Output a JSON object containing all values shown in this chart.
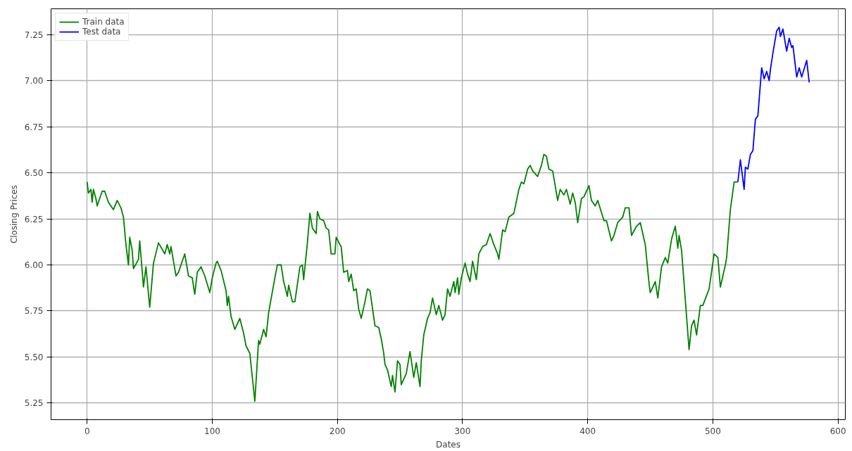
{
  "chart_data": {
    "type": "line",
    "xlabel": "Dates",
    "ylabel": "Closing Prices",
    "xlim": [
      -28.85,
      605.85
    ],
    "ylim": [
      5.16,
      7.39
    ],
    "xticks": [
      0,
      100,
      200,
      300,
      400,
      500,
      600
    ],
    "yticks": [
      5.25,
      {
        "value": 5.5,
        "label": "5.50"
      },
      5.75,
      {
        "value": 6.0,
        "label": "6.00"
      },
      6.25,
      {
        "value": 6.5,
        "label": "6.50"
      },
      6.75,
      {
        "value": 7.0,
        "label": "7.00"
      },
      7.25
    ],
    "grid": true,
    "legend": "top left",
    "marker": "none",
    "line_style": "solid",
    "series": [
      {
        "name": "Train data",
        "color": "#008000",
        "x": [
          0,
          1,
          3,
          4,
          5,
          7,
          8,
          12,
          14,
          17,
          21,
          24,
          27,
          29,
          31,
          33,
          34,
          36,
          37,
          41,
          42,
          43,
          45,
          47,
          50,
          53,
          57,
          62,
          64,
          66,
          67,
          71,
          73,
          78,
          81,
          84,
          86,
          88,
          91,
          94,
          98,
          100,
          103,
          104,
          107,
          111,
          112,
          113,
          115,
          118,
          122,
          125,
          127,
          130,
          134,
          137,
          138,
          141,
          143,
          145,
          150,
          152,
          155,
          157,
          160,
          161,
          164,
          166,
          170,
          172,
          173,
          176,
          178,
          180,
          183,
          184,
          186,
          189,
          191,
          193,
          195,
          198,
          199,
          202,
          203,
          205,
          208,
          209,
          211,
          213,
          215,
          217,
          219,
          222,
          224,
          226,
          230,
          233,
          235,
          237,
          238,
          240,
          243,
          244,
          246,
          248,
          250,
          251,
          255,
          258,
          261,
          263,
          266,
          267,
          269,
          272,
          274,
          276,
          279,
          281,
          284,
          286,
          288,
          290,
          293,
          294,
          296,
          297,
          299,
          302,
          304,
          306,
          308,
          311,
          313,
          316,
          319,
          321,
          322,
          325,
          328,
          329,
          332,
          334,
          337,
          341,
          345,
          347,
          349,
          352,
          354,
          356,
          360,
          363,
          365,
          367,
          369,
          372,
          376,
          378,
          381,
          383,
          386,
          388,
          390,
          392,
          395,
          397,
          401,
          403,
          406,
          408,
          413,
          415,
          419,
          421,
          424,
          428,
          430,
          433,
          435,
          439,
          442,
          446,
          449,
          450,
          454,
          456,
          459,
          462,
          464,
          467,
          470,
          472,
          473,
          475,
          481,
          483,
          485,
          487,
          490,
          492,
          497,
          501,
          504,
          506,
          510,
          511,
          514,
          517,
          520
        ],
        "values": [
          6.45,
          6.39,
          6.41,
          6.34,
          6.41,
          6.36,
          6.32,
          6.4,
          6.4,
          6.34,
          6.3,
          6.35,
          6.31,
          6.26,
          6.11,
          6.0,
          6.15,
          6.08,
          5.98,
          6.03,
          6.13,
          6.05,
          5.88,
          5.99,
          5.77,
          6.01,
          6.12,
          6.06,
          6.11,
          6.06,
          6.1,
          5.94,
          5.96,
          6.06,
          5.94,
          5.93,
          5.84,
          5.96,
          5.99,
          5.94,
          5.85,
          5.93,
          6.01,
          6.02,
          5.97,
          5.86,
          5.78,
          5.83,
          5.72,
          5.65,
          5.71,
          5.63,
          5.56,
          5.52,
          5.26,
          5.59,
          5.57,
          5.65,
          5.61,
          5.74,
          5.93,
          6.0,
          6.0,
          5.91,
          5.83,
          5.89,
          5.8,
          5.8,
          5.99,
          6.0,
          5.92,
          6.12,
          6.28,
          6.2,
          6.17,
          6.29,
          6.25,
          6.24,
          6.2,
          6.19,
          6.06,
          6.06,
          6.15,
          6.11,
          6.1,
          5.96,
          5.97,
          5.91,
          5.95,
          5.86,
          5.87,
          5.76,
          5.71,
          5.8,
          5.87,
          5.86,
          5.67,
          5.66,
          5.6,
          5.52,
          5.46,
          5.43,
          5.34,
          5.4,
          5.31,
          5.48,
          5.46,
          5.35,
          5.41,
          5.53,
          5.39,
          5.47,
          5.34,
          5.48,
          5.62,
          5.71,
          5.74,
          5.82,
          5.73,
          5.78,
          5.7,
          5.73,
          5.87,
          5.83,
          5.91,
          5.85,
          5.93,
          5.84,
          5.93,
          6.01,
          5.95,
          5.91,
          6.02,
          5.92,
          6.06,
          6.1,
          6.11,
          6.15,
          6.17,
          6.11,
          6.06,
          6.03,
          6.19,
          6.18,
          6.26,
          6.28,
          6.41,
          6.45,
          6.44,
          6.52,
          6.54,
          6.51,
          6.48,
          6.54,
          6.6,
          6.59,
          6.52,
          6.51,
          6.35,
          6.41,
          6.38,
          6.41,
          6.33,
          6.39,
          6.34,
          6.23,
          6.36,
          6.37,
          6.43,
          6.35,
          6.32,
          6.35,
          6.24,
          6.24,
          6.13,
          6.16,
          6.23,
          6.26,
          6.31,
          6.31,
          6.16,
          6.21,
          6.23,
          6.11,
          5.9,
          5.85,
          5.91,
          5.82,
          5.99,
          6.04,
          6.01,
          6.14,
          6.21,
          6.09,
          6.16,
          6.08,
          5.54,
          5.67,
          5.7,
          5.62,
          5.78,
          5.78,
          5.87,
          6.06,
          6.04,
          5.88,
          6.0,
          6.04,
          6.3,
          6.45,
          6.45
        ]
      },
      {
        "name": "Test data",
        "color": "#0000ff",
        "x": [
          520,
          522,
          525,
          526,
          528,
          530,
          532,
          534,
          536,
          539,
          541,
          543,
          545,
          546,
          548,
          551,
          553,
          554,
          556,
          559,
          561,
          563,
          564,
          567,
          569,
          571,
          575,
          577
        ],
        "values": [
          6.45,
          6.57,
          6.41,
          6.53,
          6.52,
          6.6,
          6.62,
          6.79,
          6.81,
          7.07,
          7.01,
          7.05,
          7.0,
          7.06,
          7.15,
          7.27,
          7.29,
          7.24,
          7.28,
          7.16,
          7.23,
          7.18,
          7.19,
          7.02,
          7.07,
          7.02,
          7.11,
          6.99
        ]
      }
    ]
  }
}
